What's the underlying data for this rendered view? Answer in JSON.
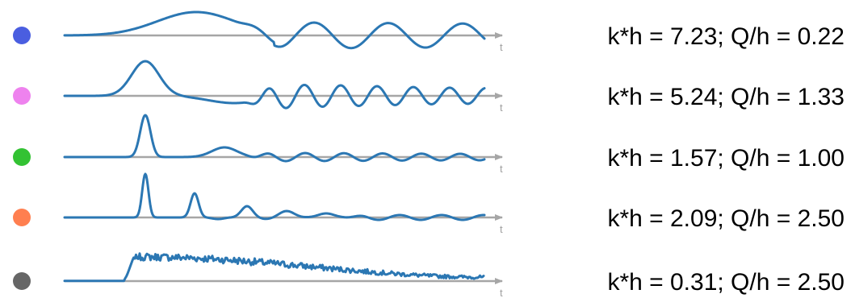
{
  "colors": {
    "curve": "#2b77b3",
    "axis": "#a6a6a6",
    "axis_label": "#a0a0a0",
    "text": "#000000"
  },
  "chart_data": {
    "type": "line",
    "x_axis_label": "t",
    "grid": false,
    "legend": "none",
    "rows": [
      {
        "id": "row-1",
        "marker_color": "#4a5ee0",
        "label": "k*h = 7.23;  Q/h = 0.22",
        "k_h": 7.23,
        "Q_h": 0.22,
        "signal": {
          "kind": "slow-wave"
        }
      },
      {
        "id": "row-2",
        "marker_color": "#ee82ee",
        "label": "k*h = 5.24;  Q/h = 1.33",
        "k_h": 5.24,
        "Q_h": 1.33,
        "signal": {
          "kind": "single-pulse-oscillating"
        }
      },
      {
        "id": "row-3",
        "marker_color": "#33c233",
        "label": "k*h = 1.57;  Q/h = 1.00",
        "k_h": 1.57,
        "Q_h": 1.0,
        "signal": {
          "kind": "sharp-pulse-decaying"
        }
      },
      {
        "id": "row-4",
        "marker_color": "#ff7f50",
        "label": "k*h = 2.09;  Q/h = 2.50",
        "k_h": 2.09,
        "Q_h": 2.5,
        "signal": {
          "kind": "pulse-train"
        }
      },
      {
        "id": "row-5",
        "marker_color": "#666666",
        "label": "k*h = 0.31;  Q/h = 2.50",
        "k_h": 0.31,
        "Q_h": 2.5,
        "signal": {
          "kind": "noisy-step"
        }
      }
    ]
  }
}
